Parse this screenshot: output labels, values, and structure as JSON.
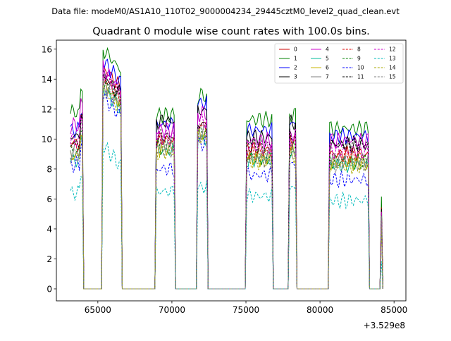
{
  "suptitle": "Data file: modeM0/AS1A10_110T02_9000004234_29445cztM0_level2_quad_clean.evt",
  "chart_data": {
    "type": "line",
    "title": "Quadrant 0 module wise count rates with 100.0s bins.",
    "xlabel": "",
    "ylabel": "",
    "x_offset_label": "+3.529e8",
    "xlim": [
      62200,
      85800
    ],
    "ylim": [
      -0.8,
      16.6
    ],
    "x_ticks": [
      65000,
      70000,
      75000,
      80000,
      85000
    ],
    "x_tick_labels": [
      "65000",
      "70000",
      "75000",
      "80000",
      "85000"
    ],
    "y_ticks": [
      0,
      2,
      4,
      6,
      8,
      10,
      12,
      14,
      16
    ],
    "y_tick_labels": [
      "0",
      "2",
      "4",
      "6",
      "8",
      "10",
      "12",
      "14",
      "16"
    ],
    "legend_position": "top-right",
    "segments": [
      {
        "start": 63150,
        "end": 63950
      },
      {
        "start": 65350,
        "end": 66550
      },
      {
        "start": 68950,
        "end": 70150
      },
      {
        "start": 71750,
        "end": 72350
      },
      {
        "start": 75000,
        "end": 76750
      },
      {
        "start": 77950,
        "end": 78350
      },
      {
        "start": 80650,
        "end": 83300
      },
      {
        "start": 84100,
        "end": 84150
      }
    ],
    "gap_value": 0,
    "series": [
      {
        "name": "0",
        "color": "#cc0000",
        "dash": false,
        "levels": [
          9.8,
          14.0,
          10.0,
          11.0,
          9.3,
          10.0,
          9.0,
          5.0
        ]
      },
      {
        "name": "1",
        "color": "#008000",
        "dash": false,
        "levels": [
          11.8,
          15.2,
          11.6,
          12.9,
          11.3,
          11.6,
          10.7,
          6.0
        ]
      },
      {
        "name": "2",
        "color": "#0000ff",
        "dash": false,
        "levels": [
          10.6,
          14.4,
          11.0,
          12.4,
          10.6,
          11.0,
          10.2,
          5.5
        ]
      },
      {
        "name": "3",
        "color": "#000000",
        "dash": false,
        "levels": [
          10.2,
          13.6,
          11.2,
          11.9,
          10.1,
          11.1,
          9.6,
          5.3
        ]
      },
      {
        "name": "4",
        "color": "#cc00cc",
        "dash": false,
        "levels": [
          10.9,
          13.9,
          10.6,
          11.7,
          9.9,
          10.3,
          9.9,
          5.0
        ]
      },
      {
        "name": "5",
        "color": "#00bb99",
        "dash": false,
        "levels": [
          8.6,
          12.6,
          9.2,
          10.0,
          8.6,
          9.0,
          8.3,
          4.6
        ]
      },
      {
        "name": "6",
        "color": "#c8b400",
        "dash": false,
        "levels": [
          8.9,
          12.9,
          9.4,
          10.3,
          8.7,
          9.2,
          8.4,
          4.7
        ]
      },
      {
        "name": "7",
        "color": "#7f7f7f",
        "dash": false,
        "levels": [
          9.3,
          13.1,
          9.7,
          10.5,
          8.9,
          9.4,
          8.6,
          4.8
        ]
      },
      {
        "name": "8",
        "color": "#dd0000",
        "dash": true,
        "levels": [
          9.6,
          13.4,
          9.9,
          10.8,
          9.1,
          9.7,
          8.9,
          4.9
        ]
      },
      {
        "name": "9",
        "color": "#008000",
        "dash": true,
        "levels": [
          9.1,
          13.0,
          9.5,
          10.4,
          8.8,
          9.3,
          8.5,
          4.8
        ]
      },
      {
        "name": "10",
        "color": "#0000ff",
        "dash": true,
        "levels": [
          8.3,
          12.1,
          8.0,
          9.7,
          7.6,
          8.3,
          7.3,
          4.5
        ]
      },
      {
        "name": "11",
        "color": "#000000",
        "dash": true,
        "levels": [
          9.7,
          13.4,
          10.2,
          11.0,
          9.6,
          10.2,
          9.7,
          5.2
        ]
      },
      {
        "name": "12",
        "color": "#cc00cc",
        "dash": true,
        "levels": [
          9.9,
          13.6,
          10.1,
          11.2,
          9.5,
          9.9,
          9.2,
          5.0
        ]
      },
      {
        "name": "13",
        "color": "#00bbbb",
        "dash": true,
        "levels": [
          6.4,
          8.8,
          6.5,
          6.8,
          6.2,
          6.7,
          5.9,
          2.3
        ]
      },
      {
        "name": "14",
        "color": "#aaaa00",
        "dash": true,
        "levels": [
          8.8,
          12.5,
          9.1,
          10.1,
          8.5,
          8.9,
          8.2,
          4.6
        ]
      },
      {
        "name": "15",
        "color": "#7f7f7f",
        "dash": true,
        "levels": [
          8.9,
          12.7,
          9.3,
          10.2,
          8.6,
          9.0,
          8.3,
          4.7
        ]
      }
    ]
  }
}
